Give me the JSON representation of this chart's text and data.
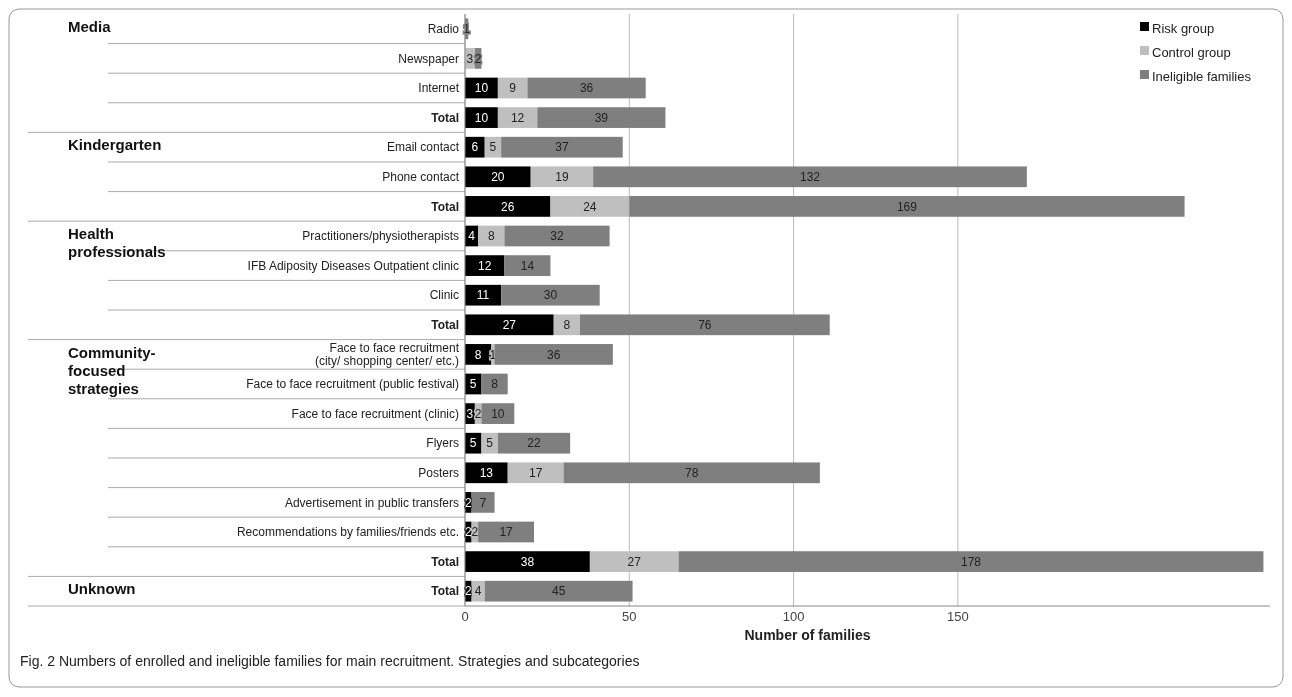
{
  "chart_data": {
    "type": "bar",
    "orientation": "horizontal",
    "stacked": true,
    "categories": [
      "Radio",
      "Newspaper",
      "Internet",
      "Total",
      "Email contact",
      "Phone contact",
      "Total",
      "Practitioners/physiotherapists",
      "IFB Adiposity Diseases Outpatient clinic",
      "Clinic",
      "Total",
      "Face to face recruitment\n(city/ shopping center/ etc.)",
      "Face to face recruitment (public festival)",
      "Face to face recruitment (clinic)",
      "Flyers",
      "Posters",
      "Advertisement in public transfers",
      "Recommendations by families/friends etc.",
      "Total",
      "Total"
    ],
    "series": [
      {
        "name": "Risk group",
        "color": "#000000",
        "values": [
          null,
          null,
          10,
          10,
          6,
          20,
          26,
          4,
          12,
          11,
          27,
          8,
          5,
          3,
          5,
          13,
          2,
          2,
          38,
          2
        ]
      },
      {
        "name": "Control group",
        "color": "#bfbfbf",
        "values": [
          null,
          3,
          9,
          12,
          5,
          19,
          24,
          8,
          null,
          null,
          8,
          1,
          null,
          2,
          5,
          17,
          null,
          2,
          27,
          4
        ]
      },
      {
        "name": "Ineligible families",
        "color": "#7f7f7f",
        "values": [
          1,
          2,
          36,
          39,
          37,
          132,
          169,
          32,
          14,
          30,
          76,
          36,
          8,
          10,
          22,
          78,
          7,
          17,
          178,
          45
        ]
      }
    ],
    "xlim": [
      0,
      245
    ],
    "xticks": [
      0,
      50,
      100,
      150
    ],
    "xlabel": "Number of families",
    "grid": "x",
    "legend": "top right",
    "data_labels": true,
    "annotations": [
      "Media",
      "Kindergarten",
      "Health\nprofessionals",
      "Community-\nfocused\nstrategies",
      "Unknown",
      "Fig. 2 Numbers of enrolled and ineligible families for main recruitment. Strategies and subcategories"
    ]
  }
}
